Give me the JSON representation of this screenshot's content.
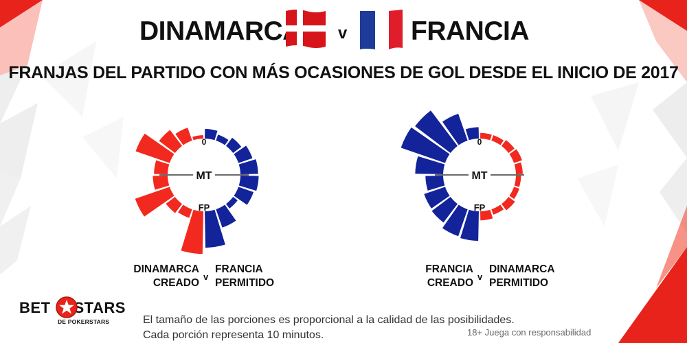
{
  "header": {
    "team_left": "DINAMARCA",
    "vs": "v",
    "team_right": "FRANCIA",
    "flag_left": "denmark-flag",
    "flag_right": "france-flag"
  },
  "subtitle": "FRANJAS DEL PARTIDO CON MÁS OCASIONES DE GOL DESDE EL INICIO DE 2017",
  "colors": {
    "red": "#f2291f",
    "blue": "#13239a",
    "text": "#111111",
    "accent_corner": "#e8231c"
  },
  "chart_data": [
    {
      "type": "radial-bar",
      "segments": [
        "0-10",
        "10-20",
        "20-30",
        "30-40",
        "40-MT",
        "MT-50",
        "50-60",
        "60-70",
        "70-80",
        "80-FP"
      ],
      "marker_labels": {
        "start": "0",
        "half": "MT",
        "end": "FP"
      },
      "series": [
        {
          "name": "DINAMARCA CREADO",
          "side": "left",
          "color": "#f2291f",
          "values": [
            0.6,
            2.4,
            3.5,
            6.3,
            2.4,
            2.6,
            6.4,
            2.0,
            1.6,
            7.5
          ]
        },
        {
          "name": "FRANCIA PERMITIDO",
          "side": "right",
          "color": "#13239a",
          "values": [
            1.7,
            1.1,
            1.8,
            2.6,
            3.1,
            3.2,
            2.8,
            1.0,
            3.4,
            6.4
          ]
        }
      ],
      "legend": {
        "left": [
          "DINAMARCA",
          "CREADO"
        ],
        "v": "v",
        "right": [
          "FRANCIA",
          "PERMITIDO"
        ]
      }
    },
    {
      "type": "radial-bar",
      "segments": [
        "0-10",
        "10-20",
        "20-30",
        "30-40",
        "40-MT",
        "MT-50",
        "50-60",
        "60-70",
        "70-80",
        "80-FP"
      ],
      "marker_labels": {
        "start": "0",
        "half": "MT",
        "end": "FP"
      },
      "series": [
        {
          "name": "FRANCIA CREADO",
          "side": "left",
          "color": "#13239a",
          "values": [
            2.0,
            5.0,
            7.8,
            8.2,
            4.9,
            3.1,
            3.9,
            4.1,
            5.0,
            5.2
          ]
        },
        {
          "name": "DINAMARCA PERMITIDO",
          "side": "right",
          "color": "#f2291f",
          "values": [
            1.0,
            1.0,
            1.3,
            1.5,
            1.2,
            0.9,
            1.0,
            1.4,
            1.0,
            1.6
          ]
        }
      ],
      "legend": {
        "left": [
          "FRANCIA",
          "CREADO"
        ],
        "v": "v",
        "right": [
          "DINAMARCA",
          "PERMITIDO"
        ]
      }
    }
  ],
  "footer": {
    "logo_text_left": "BET",
    "logo_text_right": "STARS",
    "logo_subtext": "DE POKERSTARS",
    "note_line1": "El tamaño de las porciones es proporcional a la calidad de las posibilidades.",
    "note_line2": "Cada porción representa 10 minutos.",
    "responsible": "18+ Juega con responsabilidad"
  }
}
